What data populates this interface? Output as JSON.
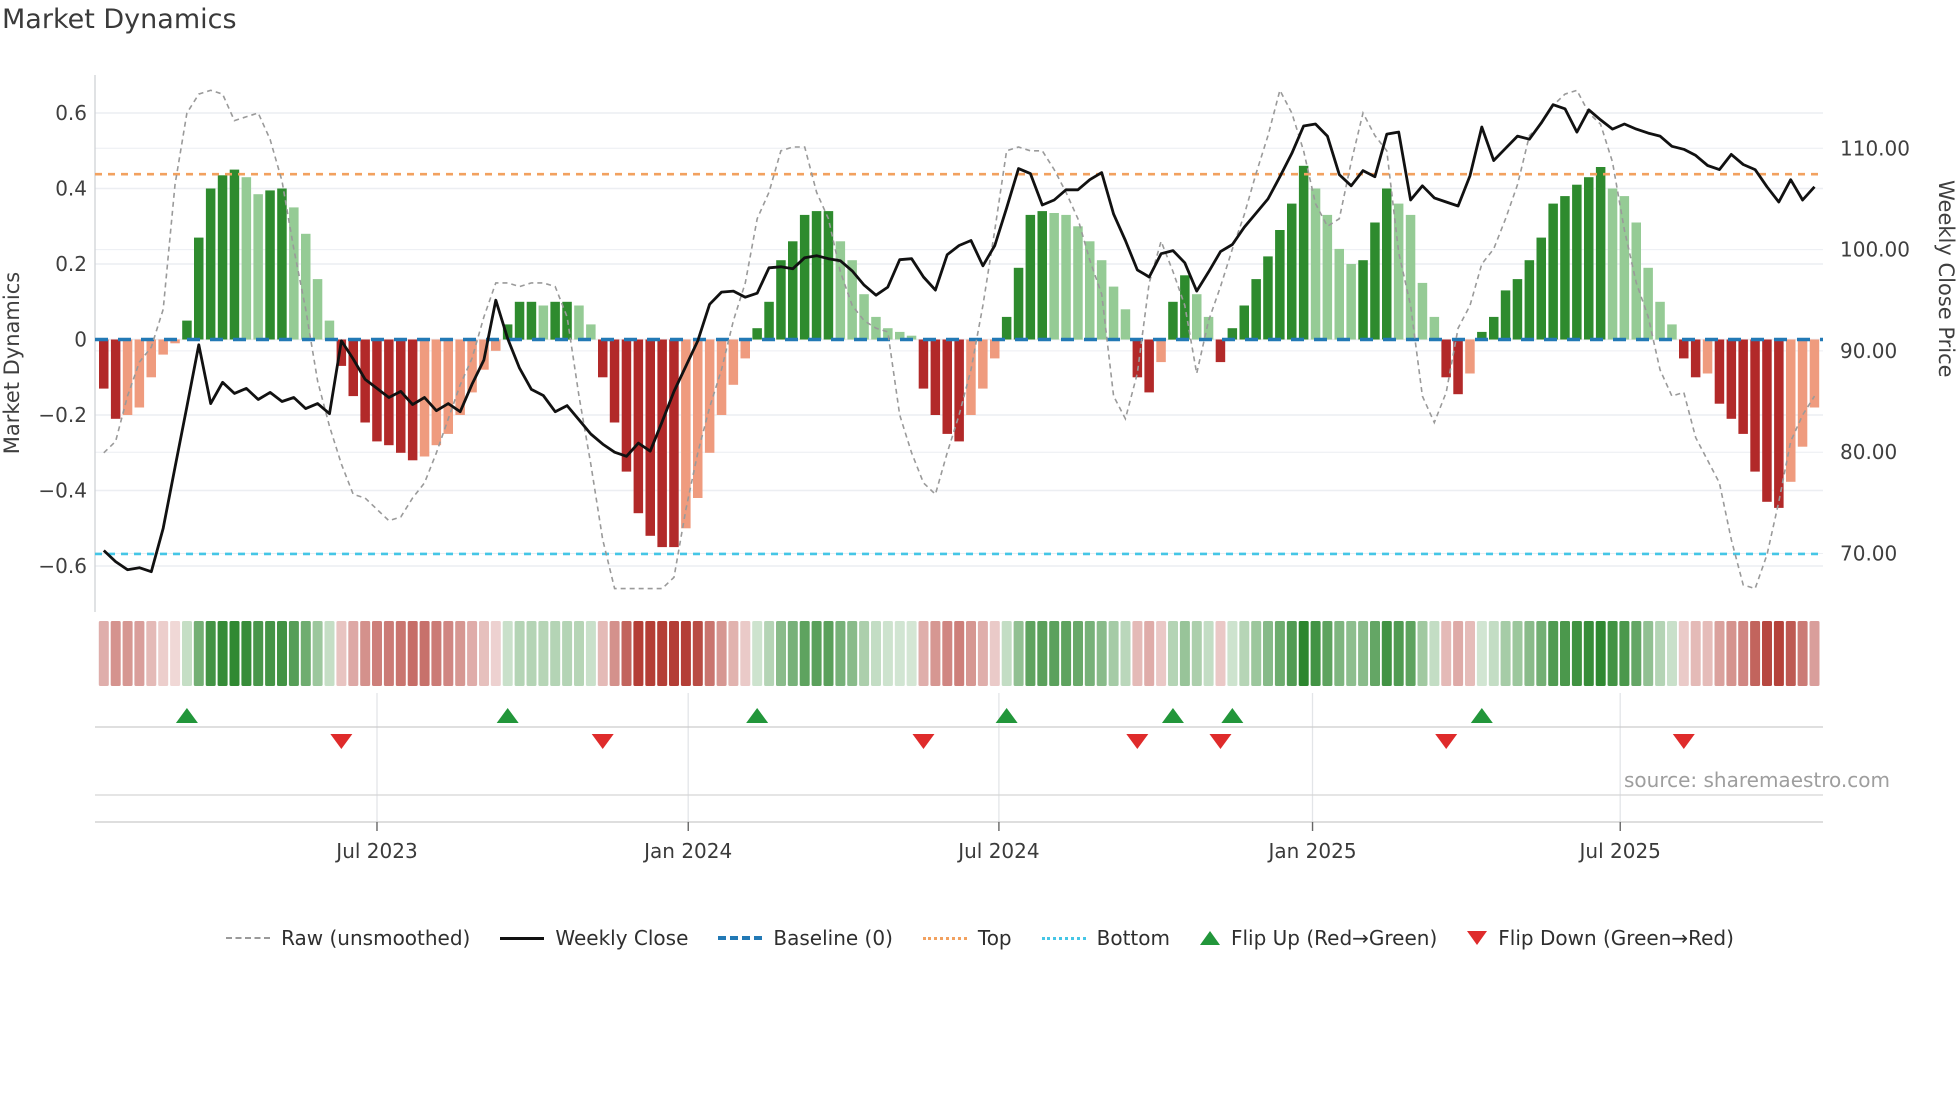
{
  "title": "Market Dynamics",
  "source": {
    "text": "source: sharemaestro.com"
  },
  "axes": {
    "left": {
      "label": "Market Dynamics",
      "ticks": [
        "0.6",
        "0.4",
        "0.2",
        "0",
        "−0.2",
        "−0.4",
        "−0.6"
      ],
      "tick_values": [
        0.6,
        0.4,
        0.2,
        0,
        -0.2,
        -0.4,
        -0.6
      ]
    },
    "right": {
      "label": "Weekly Close Price",
      "ticks": [
        "110.00",
        "100.00",
        "90.00",
        "80.00",
        "70.00"
      ],
      "tick_values": [
        110,
        100,
        90,
        80,
        70
      ]
    },
    "x": {
      "ticks": [
        "Jul 2023",
        "Jan 2024",
        "Jul 2024",
        "Jan 2025",
        "Jul 2025"
      ],
      "tick_weeks": [
        23.0,
        49.2,
        75.35,
        101.75,
        127.65
      ]
    }
  },
  "reference_lines": {
    "baseline": {
      "label": "Baseline (0)",
      "value": 0,
      "color": "#2279b5"
    },
    "top": {
      "label": "Top",
      "value": 0.438,
      "color": "#f2a15f"
    },
    "bottom": {
      "label": "Bottom",
      "value": -0.568,
      "color": "#45c6e6"
    }
  },
  "colors": {
    "bar_pos_strong": "#2e8b2e",
    "bar_pos_weak": "#95cb95",
    "bar_neg_strong": "#b22929",
    "bar_neg_weak": "#ef9b7e",
    "price_line": "#111111",
    "raw_line": "#9a9a9a",
    "grid": "#eceef2",
    "flip_up": "#22963a",
    "flip_down": "#df2b2b",
    "heat_pos": "40,132,42",
    "heat_neg": "178,58,50"
  },
  "legend": {
    "items": [
      {
        "label": "Raw (unsmoothed)",
        "swatch": "dash",
        "color": "#9a9a9a"
      },
      {
        "label": "Weekly Close",
        "swatch": "solid",
        "color": "#111111"
      },
      {
        "label": "Baseline (0)",
        "swatch": "dashwide",
        "color": "#2279b5"
      },
      {
        "label": "Top",
        "swatch": "dot",
        "color": "#f2a15f"
      },
      {
        "label": "Bottom",
        "swatch": "dot",
        "color": "#45c6e6"
      },
      {
        "label": "Flip Up (Red→Green)",
        "swatch": "tri-up",
        "color": "#22963a"
      },
      {
        "label": "Flip Down (Green→Red)",
        "swatch": "tri-down",
        "color": "#df2b2b"
      }
    ]
  },
  "chart_data": {
    "type": "combo",
    "title": "Market Dynamics",
    "ylabel_left": "Market Dynamics",
    "ylabel_right": "Weekly Close Price",
    "ylim_left": [
      -0.72,
      0.7
    ],
    "ylim_right": [
      64.2,
      117.2
    ],
    "x_tick_labels": [
      "Jul 2023",
      "Jan 2024",
      "Jul 2024",
      "Jan 2025",
      "Jul 2025"
    ],
    "x_tick_weeks": [
      23.0,
      49.2,
      75.35,
      101.75,
      127.65
    ],
    "n_weeks": 145,
    "series": [
      {
        "name": "Oscillator (smoothed bars)",
        "type": "bar",
        "axis": "left"
      },
      {
        "name": "Raw (unsmoothed)",
        "type": "line",
        "style": "dashed",
        "axis": "left"
      },
      {
        "name": "Weekly Close",
        "type": "line",
        "style": "solid",
        "axis": "right"
      }
    ],
    "oscillator": [
      -0.13,
      -0.21,
      -0.2,
      -0.18,
      -0.1,
      -0.04,
      -0.01,
      0.05,
      0.27,
      0.4,
      0.435,
      0.45,
      0.43,
      0.385,
      0.395,
      0.4,
      0.35,
      0.28,
      0.16,
      0.05,
      -0.07,
      -0.15,
      -0.22,
      -0.27,
      -0.28,
      -0.3,
      -0.32,
      -0.31,
      -0.28,
      -0.25,
      -0.2,
      -0.14,
      -0.08,
      -0.03,
      0.04,
      0.1,
      0.1,
      0.09,
      0.1,
      0.1,
      0.09,
      0.04,
      -0.1,
      -0.22,
      -0.35,
      -0.46,
      -0.52,
      -0.55,
      -0.55,
      -0.5,
      -0.42,
      -0.3,
      -0.2,
      -0.12,
      -0.05,
      0.03,
      0.1,
      0.21,
      0.26,
      0.33,
      0.34,
      0.34,
      0.26,
      0.21,
      0.12,
      0.06,
      0.03,
      0.02,
      0.01,
      -0.13,
      -0.2,
      -0.25,
      -0.27,
      -0.2,
      -0.13,
      -0.05,
      0.06,
      0.19,
      0.33,
      0.34,
      0.335,
      0.33,
      0.3,
      0.26,
      0.21,
      0.14,
      0.08,
      -0.1,
      -0.14,
      -0.06,
      0.1,
      0.17,
      0.12,
      0.06,
      -0.06,
      0.03,
      0.09,
      0.16,
      0.22,
      0.29,
      0.36,
      0.46,
      0.4,
      0.33,
      0.24,
      0.2,
      0.21,
      0.31,
      0.4,
      0.36,
      0.33,
      0.15,
      0.06,
      -0.1,
      -0.145,
      -0.09,
      0.02,
      0.06,
      0.13,
      0.16,
      0.21,
      0.27,
      0.36,
      0.38,
      0.41,
      0.43,
      0.457,
      0.4,
      0.38,
      0.31,
      0.19,
      0.1,
      0.04,
      -0.05,
      -0.1,
      -0.09,
      -0.17,
      -0.21,
      -0.25,
      -0.35,
      -0.43,
      -0.446,
      -0.377,
      -0.284,
      -0.18
    ],
    "raw": [
      -0.3,
      -0.27,
      -0.15,
      -0.06,
      -0.02,
      0.08,
      0.41,
      0.6,
      0.65,
      0.66,
      0.65,
      0.58,
      0.59,
      0.6,
      0.53,
      0.42,
      0.24,
      0.08,
      -0.11,
      -0.23,
      -0.33,
      -0.41,
      -0.42,
      -0.45,
      -0.48,
      -0.47,
      -0.42,
      -0.38,
      -0.3,
      -0.21,
      -0.12,
      -0.05,
      0.06,
      0.15,
      0.15,
      0.14,
      0.15,
      0.15,
      0.14,
      0.06,
      -0.15,
      -0.33,
      -0.53,
      -0.66,
      -0.66,
      -0.66,
      -0.66,
      -0.66,
      -0.63,
      -0.45,
      -0.3,
      -0.18,
      -0.08,
      0.05,
      0.15,
      0.32,
      0.39,
      0.5,
      0.51,
      0.51,
      0.39,
      0.32,
      0.18,
      0.09,
      0.05,
      0.03,
      0.02,
      -0.2,
      -0.3,
      -0.38,
      -0.41,
      -0.3,
      -0.2,
      -0.08,
      0.09,
      0.29,
      0.5,
      0.51,
      0.5,
      0.5,
      0.45,
      0.39,
      0.32,
      0.21,
      0.12,
      -0.15,
      -0.21,
      -0.09,
      0.15,
      0.26,
      0.18,
      0.09,
      -0.09,
      0.05,
      0.14,
      0.24,
      0.33,
      0.44,
      0.54,
      0.66,
      0.6,
      0.5,
      0.36,
      0.3,
      0.32,
      0.47,
      0.6,
      0.54,
      0.5,
      0.23,
      0.09,
      -0.15,
      -0.22,
      -0.14,
      0.03,
      0.09,
      0.2,
      0.24,
      0.32,
      0.41,
      0.54,
      0.57,
      0.62,
      0.65,
      0.66,
      0.6,
      0.57,
      0.47,
      0.29,
      0.15,
      0.06,
      -0.08,
      -0.15,
      -0.14,
      -0.26,
      -0.32,
      -0.38,
      -0.53,
      -0.65,
      -0.66,
      -0.57,
      -0.43,
      -0.27,
      -0.2,
      -0.15
    ],
    "price": [
      70.3,
      69.2,
      68.4,
      68.6,
      68.2,
      72.5,
      78.5,
      84.5,
      90.6,
      84.8,
      86.9,
      85.8,
      86.3,
      85.2,
      85.9,
      85.0,
      85.4,
      84.3,
      84.8,
      83.8,
      91.0,
      89.2,
      87.2,
      86.3,
      85.4,
      86.0,
      84.7,
      85.4,
      84.1,
      84.8,
      84.0,
      86.7,
      89.1,
      95.0,
      91.2,
      88.3,
      86.2,
      85.6,
      84.0,
      84.6,
      83.2,
      81.8,
      80.8,
      80.0,
      79.6,
      80.9,
      80.1,
      83.0,
      86.0,
      88.5,
      91.0,
      94.6,
      95.8,
      95.9,
      95.3,
      95.7,
      98.2,
      98.3,
      98.1,
      99.2,
      99.4,
      99.1,
      98.9,
      97.9,
      96.5,
      95.5,
      96.3,
      99.0,
      99.1,
      97.3,
      96.0,
      99.5,
      100.4,
      100.9,
      98.4,
      100.4,
      104.1,
      108.0,
      107.5,
      104.4,
      104.9,
      105.9,
      105.9,
      106.9,
      107.6,
      103.5,
      100.9,
      98.0,
      97.3,
      99.6,
      99.9,
      98.7,
      95.9,
      97.8,
      99.8,
      100.5,
      102.2,
      103.6,
      105.0,
      107.2,
      109.5,
      112.2,
      112.4,
      111.2,
      107.4,
      106.3,
      107.8,
      107.2,
      111.4,
      111.6,
      104.9,
      106.3,
      105.1,
      104.7,
      104.3,
      107.3,
      112.1,
      108.8,
      110.0,
      111.2,
      110.9,
      112.5,
      114.3,
      113.9,
      111.6,
      113.8,
      112.8,
      111.9,
      112.4,
      111.9,
      111.5,
      111.2,
      110.2,
      109.9,
      109.3,
      108.3,
      107.9,
      109.4,
      108.4,
      107.9,
      106.2,
      104.7,
      106.9,
      104.9,
      106.2
    ],
    "flip_up_weeks": [
      7,
      34,
      55,
      76,
      90,
      95,
      116
    ],
    "flip_down_weeks": [
      20,
      42,
      69,
      87,
      94,
      113,
      133
    ],
    "legend_entries": [
      "Raw (unsmoothed)",
      "Weekly Close",
      "Baseline (0)",
      "Top",
      "Bottom",
      "Flip Up (Red→Green)",
      "Flip Down (Green→Red)"
    ],
    "grid": true,
    "legend_position": "bottom-center"
  }
}
